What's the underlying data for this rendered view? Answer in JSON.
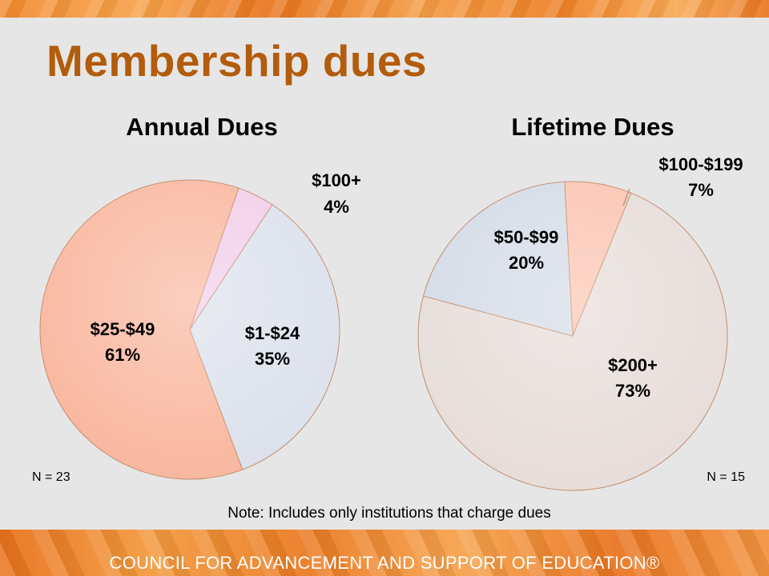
{
  "slide": {
    "title": "Membership dues",
    "note": "Note: Includes only institutions that charge dues",
    "footer": "COUNCIL FOR ADVANCEMENT AND SUPPORT OF EDUCATION®"
  },
  "chart_data": [
    {
      "type": "pie",
      "title": "Annual Dues",
      "sample_size": "N = 23",
      "slices": [
        {
          "label": "$100+",
          "value": 4,
          "value_label": "4%",
          "color": "#f1cde8"
        },
        {
          "label": "$1-$24",
          "value": 35,
          "value_label": "35%",
          "color": "#dbe0eb"
        },
        {
          "label": "$25-$49",
          "value": 61,
          "value_label": "61%",
          "color": "#f9b59c"
        }
      ]
    },
    {
      "type": "pie",
      "title": "Lifetime Dues",
      "sample_size": "N = 15",
      "slices": [
        {
          "label": "$100-$199",
          "value": 7,
          "value_label": "7%",
          "color": "#fbc2ae"
        },
        {
          "label": "$200+",
          "value": 73,
          "value_label": "73%",
          "color": "#e6dcd8"
        },
        {
          "label": "$50-$99",
          "value": 20,
          "value_label": "20%",
          "color": "#d3dae6"
        }
      ]
    }
  ]
}
